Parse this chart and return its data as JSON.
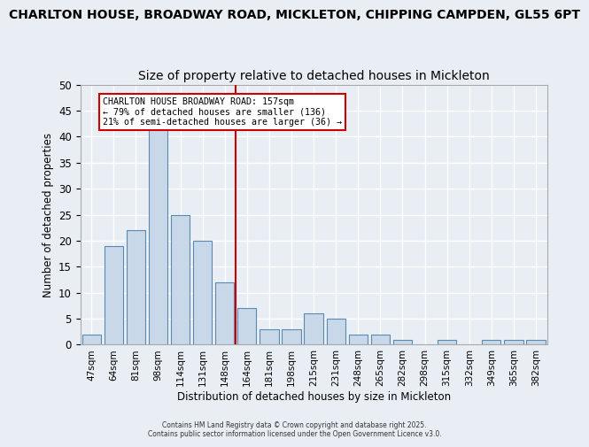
{
  "title_line1": "CHARLTON HOUSE, BROADWAY ROAD, MICKLETON, CHIPPING CAMPDEN, GL55 6PT",
  "title_line2": "Size of property relative to detached houses in Mickleton",
  "xlabel": "Distribution of detached houses by size in Mickleton",
  "ylabel": "Number of detached properties",
  "categories": [
    "47sqm",
    "64sqm",
    "81sqm",
    "98sqm",
    "114sqm",
    "131sqm",
    "148sqm",
    "164sqm",
    "181sqm",
    "198sqm",
    "215sqm",
    "231sqm",
    "248sqm",
    "265sqm",
    "282sqm",
    "298sqm",
    "315sqm",
    "332sqm",
    "349sqm",
    "365sqm",
    "382sqm"
  ],
  "values": [
    2,
    19,
    22,
    42,
    25,
    20,
    12,
    7,
    3,
    3,
    6,
    5,
    2,
    2,
    1,
    0,
    1,
    0,
    1,
    1,
    1
  ],
  "bar_color": "#c8d8e8",
  "bar_edge_color": "#5a8ab0",
  "vline_x": 6.5,
  "vline_color": "#cc0000",
  "annotation_text": "CHARLTON HOUSE BROADWAY ROAD: 157sqm\n← 79% of detached houses are smaller (136)\n21% of semi-detached houses are larger (36) →",
  "annotation_box_color": "#ffffff",
  "annotation_box_edge": "#cc0000",
  "ylim": [
    0,
    50
  ],
  "yticks": [
    0,
    5,
    10,
    15,
    20,
    25,
    30,
    35,
    40,
    45,
    50
  ],
  "background_color": "#e8eef4",
  "grid_color": "#ffffff",
  "footer_text": "Contains HM Land Registry data © Crown copyright and database right 2025.\nContains public sector information licensed under the Open Government Licence v3.0.",
  "title_fontsize": 10,
  "subtitle_fontsize": 10
}
